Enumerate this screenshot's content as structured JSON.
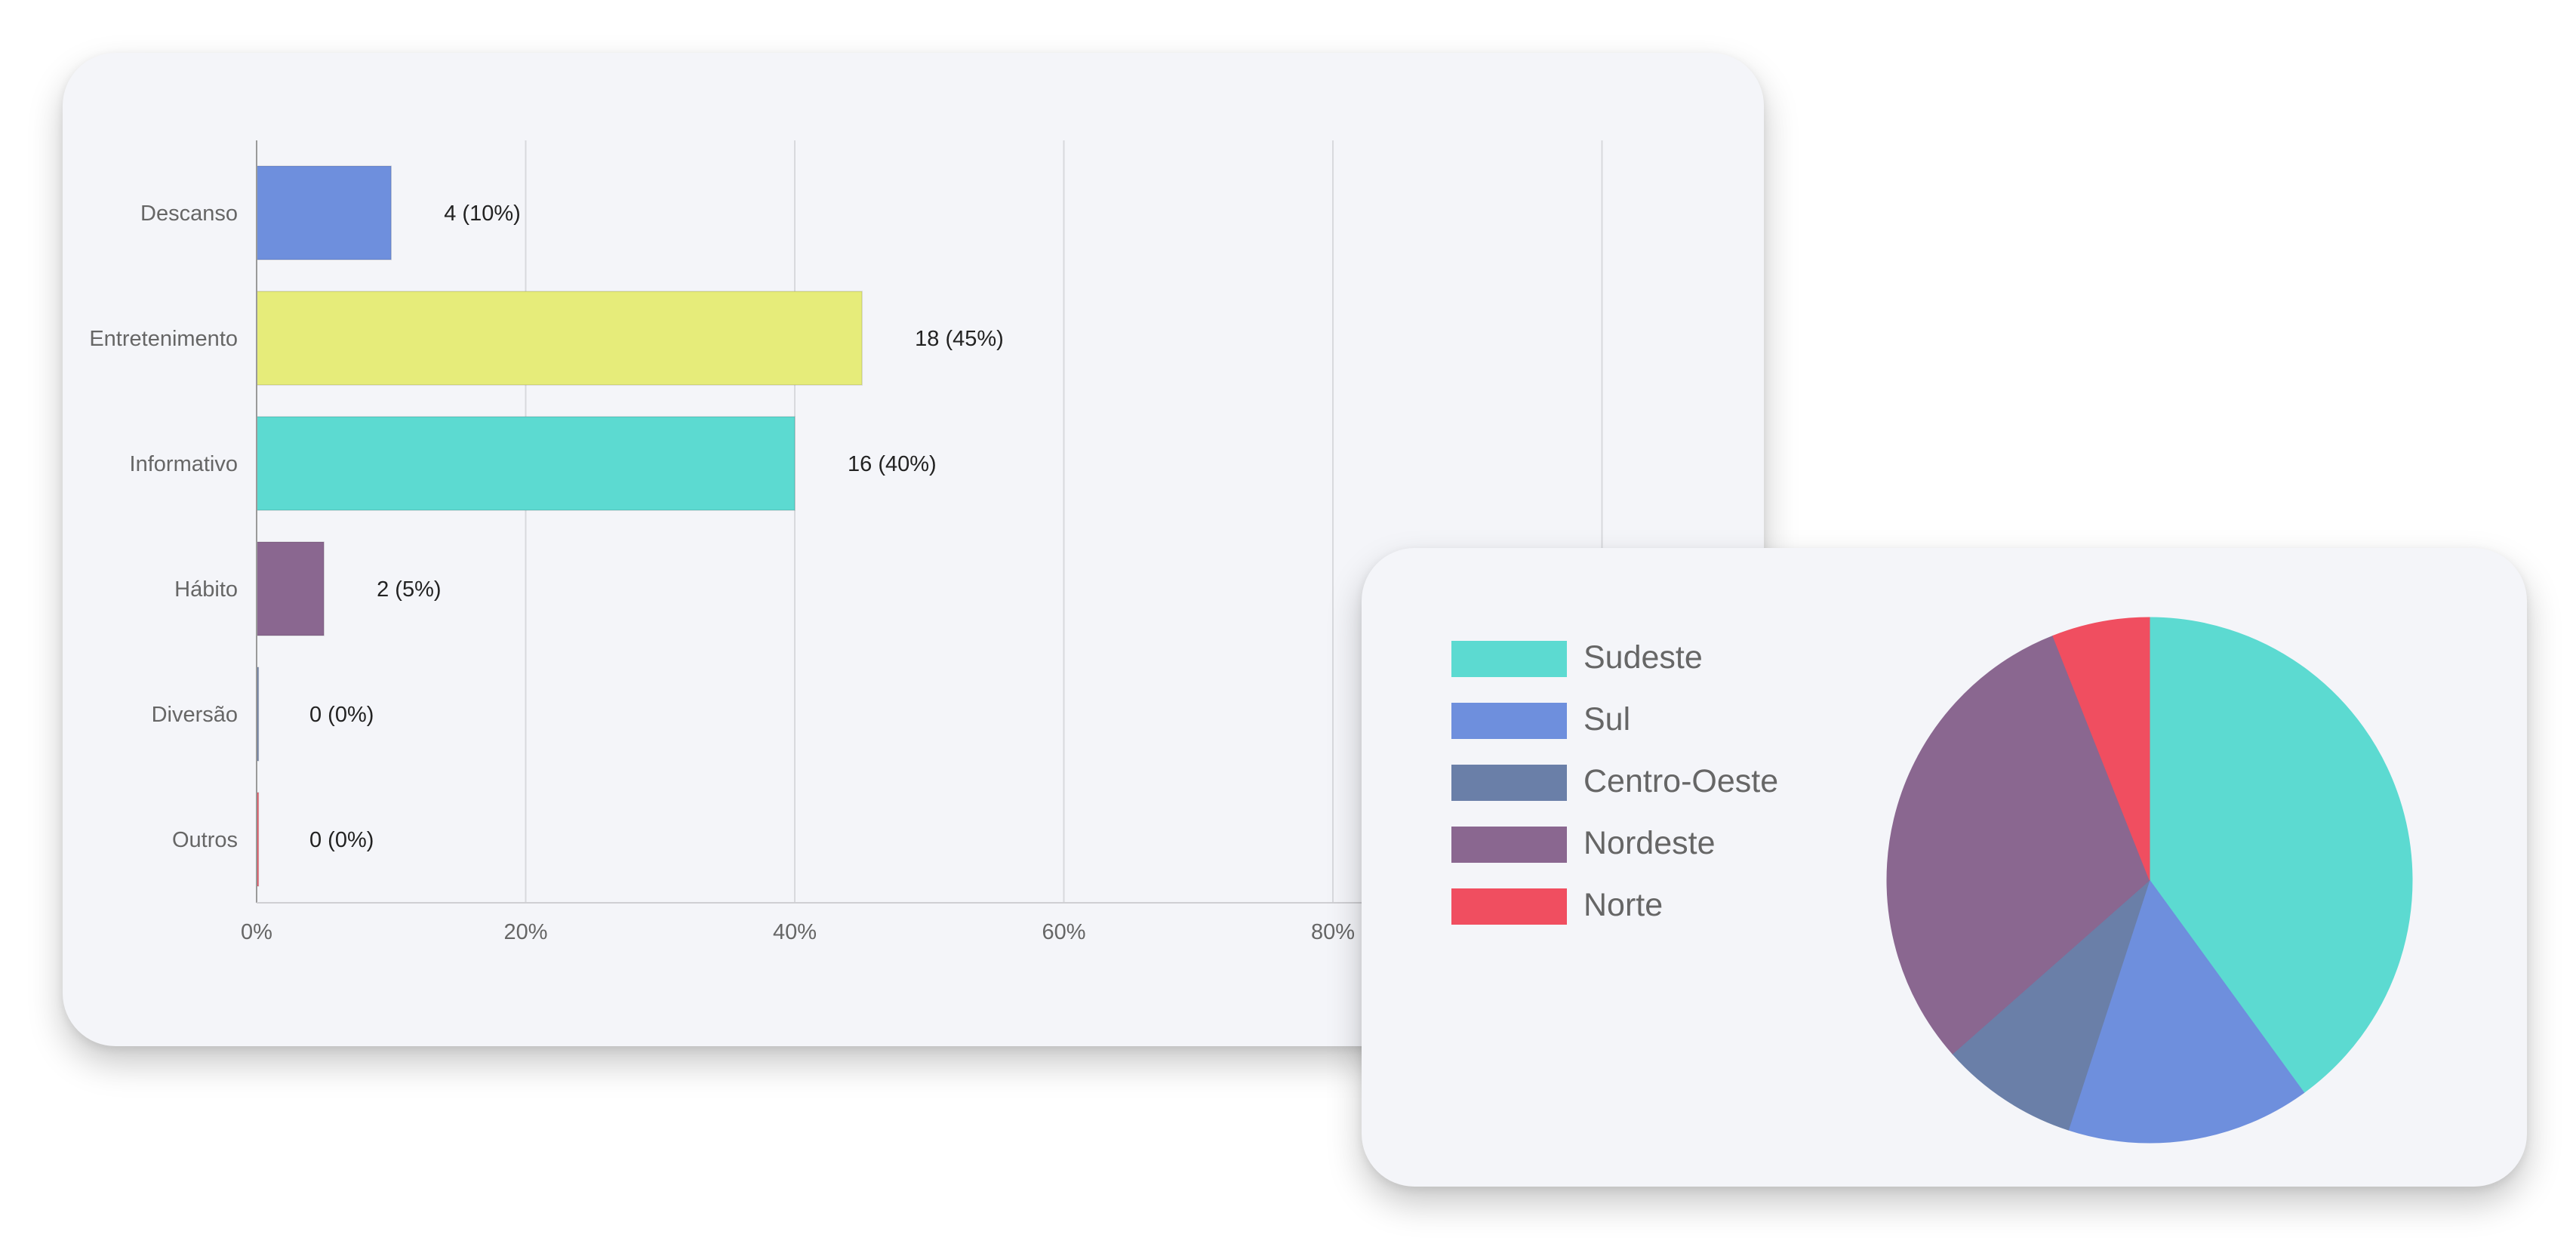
{
  "chart_data": [
    {
      "type": "bar",
      "orientation": "horizontal",
      "categories": [
        "Descanso",
        "Entretenimento",
        "Informativo",
        "Hábito",
        "Diversão",
        "Outros"
      ],
      "values": [
        10,
        45,
        40,
        5,
        0,
        0
      ],
      "data_labels": [
        "4 (10%)",
        "18 (45%)",
        "16 (40%)",
        "2 (5%)",
        "0 (0%)",
        "0 (0%)"
      ],
      "colors": [
        "#6e8fdd",
        "#e6ec7a",
        "#5cdad1",
        "#8a6790",
        "#6a7fa8",
        "#f04e60"
      ],
      "xlim": [
        0,
        100
      ],
      "x_ticks": [
        "0%",
        "20%",
        "40%",
        "60%",
        "80%"
      ],
      "grid": true,
      "title": "",
      "xlabel": "",
      "ylabel": ""
    },
    {
      "type": "pie",
      "labels": [
        "Sudeste",
        "Sul",
        "Centro-Oeste",
        "Nordeste",
        "Norte"
      ],
      "values": [
        40,
        15,
        8.5,
        30.5,
        6
      ],
      "colors": [
        "#5cdad1",
        "#6e8fdd",
        "#6a7fa8",
        "#8a6790",
        "#f04e60"
      ],
      "legend": "left",
      "title": ""
    }
  ]
}
